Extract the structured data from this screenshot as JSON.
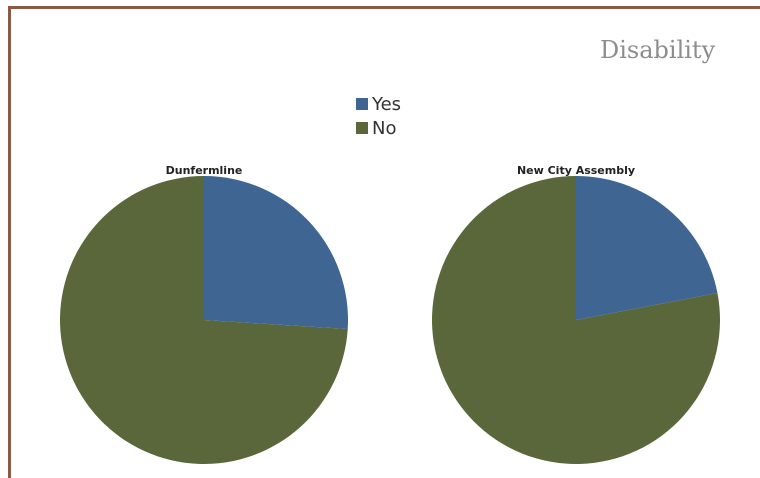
{
  "slide": {
    "title": "Disability"
  },
  "legend": [
    {
      "label": "Yes",
      "color": "#3f6593"
    },
    {
      "label": "No",
      "color": "#5a673b"
    }
  ],
  "chart_data": [
    {
      "type": "pie",
      "title": "Dunfermline",
      "categories": [
        "Yes",
        "No"
      ],
      "values": [
        26,
        74
      ],
      "colors": [
        "#3f6593",
        "#5a673b"
      ]
    },
    {
      "type": "pie",
      "title": "New City Assembly",
      "categories": [
        "Yes",
        "No"
      ],
      "values": [
        22,
        78
      ],
      "colors": [
        "#3f6593",
        "#5a673b"
      ]
    }
  ]
}
